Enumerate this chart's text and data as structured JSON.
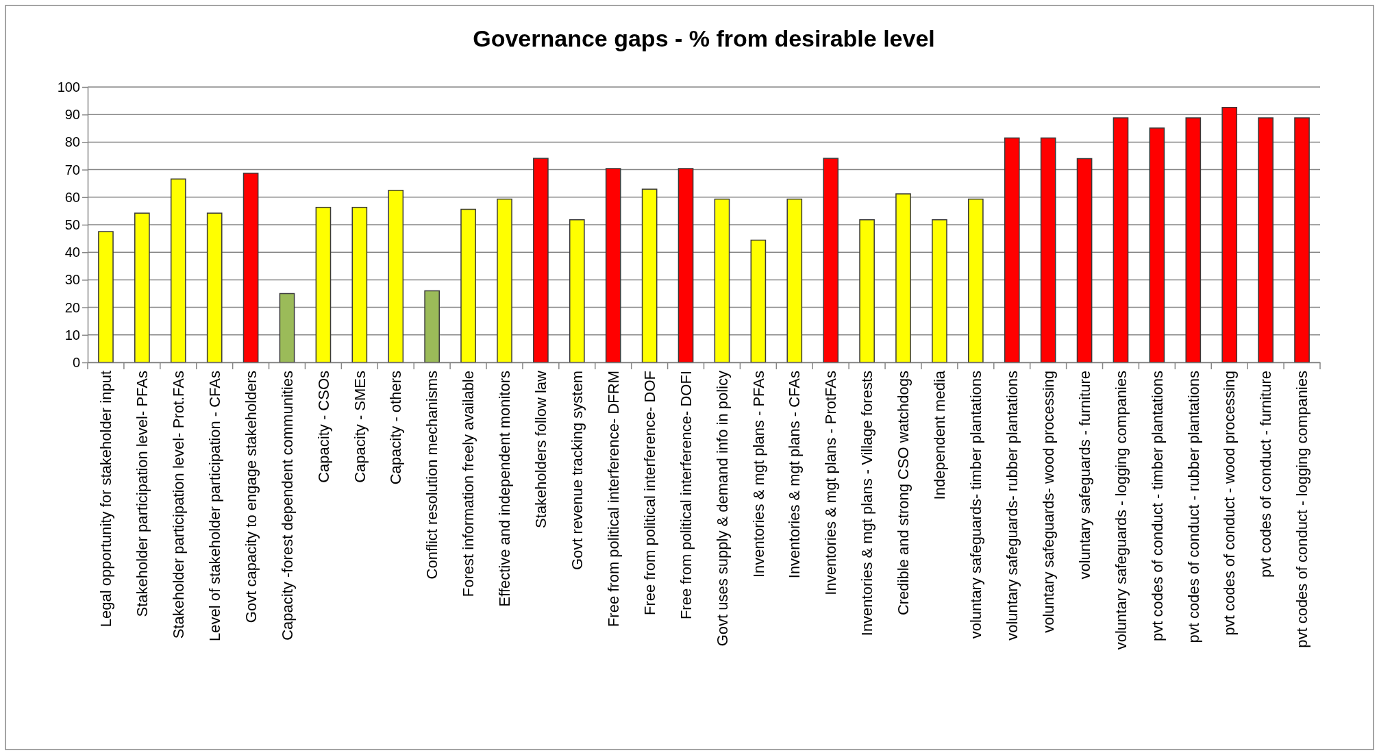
{
  "chart_data": {
    "type": "bar",
    "title": "Governance gaps - % from desirable level",
    "categories": [
      "Legal opportunity for stakeholder input",
      "Stakeholder participation level- PFAs",
      "Stakeholder participation level- Prot.FAs",
      "Level of stakeholder participation - CFAs",
      "Govt capacity to engage stakeholders",
      "Capacity -forest dependent communities",
      "Capacity - CSOs",
      "Capacity - SMEs",
      "Capacity - others",
      "Conflict resolution mechanisms",
      "Forest information freely available",
      "Effective and independent monitors",
      "Stakeholders follow law",
      "Govt revenue tracking system",
      "Free from political interference- DFRM",
      "Free from political interference- DOF",
      "Free from political interference- DOFI",
      "Govt uses supply & demand info in policy",
      "Inventories & mgt plans - PFAs",
      "Inventories & mgt plans - CFAs",
      "Inventories & mgt plans - ProtFAs",
      "Inventories & mgt plans - Village forests",
      "Credible and strong CSO watchdogs",
      "Independent media",
      "voluntary safeguards- timber plantations",
      "voluntary safeguards- rubber plantations",
      "voluntary safeguards- wood processing",
      "voluntary safeguards - furniture",
      "voluntary safeguards - logging companies",
      "pvt codes of conduct - timber plantations",
      "pvt codes of conduct - rubber plantations",
      "pvt codes of conduct - wood processing",
      "pvt codes of conduct - furniture",
      "pvt codes of conduct - logging companies"
    ],
    "values": [
      47.5,
      54.2,
      66.6,
      54.2,
      68.7,
      25,
      56.3,
      56.3,
      62.5,
      26,
      55.6,
      59.3,
      74.1,
      51.8,
      70.4,
      62.9,
      70.4,
      59.3,
      44.4,
      59.3,
      74.1,
      51.8,
      61.2,
      51.8,
      59.3,
      81.5,
      81.5,
      74,
      88.8,
      85.1,
      88.8,
      92.6,
      88.8,
      88.8
    ],
    "colors": [
      "#ffff00",
      "#ffff00",
      "#ffff00",
      "#ffff00",
      "#ff0000",
      "#9bbb59",
      "#ffff00",
      "#ffff00",
      "#ffff00",
      "#9bbb59",
      "#ffff00",
      "#ffff00",
      "#ff0000",
      "#ffff00",
      "#ff0000",
      "#ffff00",
      "#ff0000",
      "#ffff00",
      "#ffff00",
      "#ffff00",
      "#ff0000",
      "#ffff00",
      "#ffff00",
      "#ffff00",
      "#ffff00",
      "#ff0000",
      "#ff0000",
      "#ff0000",
      "#ff0000",
      "#ff0000",
      "#ff0000",
      "#ff0000",
      "#ff0000",
      "#ff0000"
    ],
    "ylim": [
      0,
      100
    ],
    "yticks": [
      0,
      10,
      20,
      30,
      40,
      50,
      60,
      70,
      80,
      90,
      100
    ],
    "grid": "y"
  }
}
